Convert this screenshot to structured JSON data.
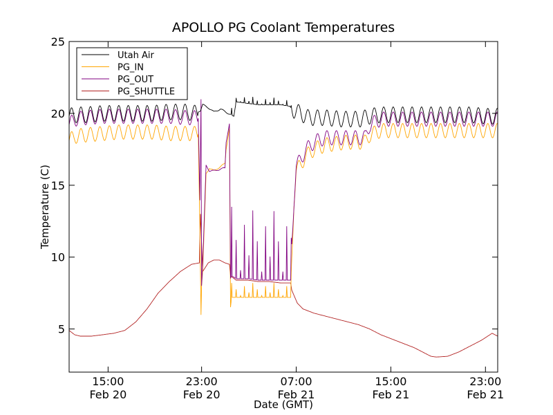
{
  "chart_data": {
    "type": "line",
    "title": "APOLLO PG Coolant Temperatures",
    "xlabel": "Date (GMT)",
    "ylabel": "Temperature (C)",
    "x_unit": "hours since 2020-02-20 10:00 GMT",
    "xlim": [
      0,
      38.5
    ],
    "ylim": [
      2,
      25
    ],
    "y_ticks": [
      5,
      10,
      15,
      20,
      25
    ],
    "x_ticks": [
      {
        "x": 3.5,
        "time": "15:00",
        "date": "Feb 20"
      },
      {
        "x": 11.9,
        "time": "23:00",
        "date": "Feb 20"
      },
      {
        "x": 20.4,
        "time": "07:00",
        "date": "Feb 21"
      },
      {
        "x": 28.9,
        "time": "15:00",
        "date": "Feb 21"
      },
      {
        "x": 37.4,
        "time": "23:00",
        "date": "Feb 21"
      }
    ],
    "grid": false,
    "legend_position": "top-left",
    "series": [
      {
        "name": "Utah Air",
        "color": "#000000",
        "x": [
          0,
          0.5,
          1.5,
          3.0,
          4.5,
          6.0,
          7.5,
          9.0,
          10.5,
          11.2,
          11.8,
          12.0,
          12.5,
          13.0,
          13.6,
          14.3,
          14.8,
          15.0,
          16.0,
          17.0,
          18.0,
          19.0,
          19.8,
          20.2,
          20.8,
          21.5,
          23.0,
          24.5,
          25.5,
          26.2,
          26.6,
          27.0,
          28.0,
          30.0,
          32.0,
          34.0,
          36.0,
          37.5,
          38.5
        ],
        "values": [
          19.8,
          19.9,
          19.9,
          20.0,
          20.0,
          20.0,
          20.0,
          20.1,
          20.1,
          20.0,
          20.2,
          20.6,
          20.4,
          20.1,
          20.3,
          20.0,
          19.8,
          20.8,
          20.7,
          20.6,
          20.6,
          20.6,
          20.5,
          20.2,
          20.0,
          19.7,
          19.7,
          19.6,
          19.6,
          19.6,
          19.7,
          19.8,
          19.9,
          19.9,
          19.9,
          19.9,
          19.9,
          19.8,
          19.8
        ],
        "oscillation": 0.55
      },
      {
        "name": "PG_IN",
        "color": "#ffa500",
        "x": [
          0,
          0.5,
          1.5,
          3.0,
          4.5,
          6.0,
          7.5,
          9.0,
          10.5,
          11.6,
          11.75,
          11.85,
          11.9,
          12.0,
          12.3,
          12.6,
          13.0,
          14.0,
          14.1,
          14.4,
          14.5,
          14.6,
          14.8,
          15.0,
          16.0,
          17.0,
          18.0,
          19.0,
          19.9,
          20.0,
          20.2,
          20.4,
          20.8,
          21.2,
          22.0,
          23.0,
          24.0,
          25.0,
          26.0,
          26.6,
          27.0,
          28.0,
          30.0,
          32.0,
          34.0,
          36.0,
          37.5,
          38.5
        ],
        "values": [
          18.1,
          18.4,
          18.5,
          18.6,
          18.7,
          18.7,
          18.7,
          18.6,
          18.6,
          18.6,
          12.0,
          6.0,
          8.0,
          9.0,
          15.8,
          16.2,
          16.0,
          16.5,
          17.5,
          19.0,
          6.5,
          7.2,
          7.2,
          7.2,
          7.2,
          7.2,
          7.2,
          7.2,
          7.2,
          10.0,
          14.0,
          16.0,
          16.4,
          17.0,
          17.5,
          17.8,
          17.9,
          18.0,
          18.0,
          18.0,
          18.5,
          18.8,
          18.8,
          18.8,
          18.8,
          18.8,
          18.8,
          18.8
        ],
        "oscillation": 0.5
      },
      {
        "name": "PG_OUT",
        "color": "#800080",
        "x": [
          0,
          0.5,
          1.5,
          3.0,
          4.5,
          6.0,
          7.5,
          9.0,
          10.5,
          11.6,
          11.75,
          11.85,
          11.9,
          12.0,
          12.3,
          12.6,
          13.0,
          14.0,
          14.1,
          14.4,
          14.5,
          14.6,
          14.8,
          15.0,
          16.0,
          17.0,
          18.0,
          19.0,
          19.9,
          20.0,
          20.2,
          20.4,
          20.8,
          21.2,
          22.0,
          23.0,
          24.0,
          25.0,
          26.0,
          26.6,
          27.0,
          28.0,
          30.0,
          32.0,
          34.0,
          36.0,
          37.5,
          38.5
        ],
        "values": [
          19.2,
          19.6,
          19.7,
          19.8,
          19.8,
          19.8,
          19.8,
          19.8,
          19.7,
          19.7,
          14.0,
          21.0,
          8.0,
          9.5,
          16.4,
          16.0,
          16.0,
          16.2,
          18.0,
          19.3,
          8.5,
          8.7,
          8.6,
          8.5,
          8.5,
          8.4,
          8.4,
          8.4,
          8.4,
          11.0,
          14.0,
          16.3,
          16.8,
          17.4,
          18.0,
          18.3,
          18.3,
          18.3,
          18.3,
          18.3,
          19.2,
          19.6,
          19.6,
          19.6,
          19.6,
          19.6,
          19.6,
          19.6
        ],
        "oscillation": 0.5
      },
      {
        "name": "PG_SHUTTLE",
        "color": "#b22222",
        "x": [
          0,
          0.5,
          1.0,
          1.5,
          2.0,
          3.0,
          4.0,
          5.0,
          6.0,
          7.0,
          8.0,
          9.0,
          10.0,
          11.0,
          11.7,
          11.8,
          12.0,
          12.5,
          13.0,
          13.5,
          14.0,
          14.4,
          14.5,
          15.0,
          16.0,
          17.0,
          18.0,
          19.0,
          19.9,
          20.0,
          20.5,
          21.0,
          22.0,
          23.0,
          24.0,
          25.0,
          26.0,
          27.0,
          28.0,
          29.0,
          30.0,
          31.0,
          32.0,
          32.5,
          33.0,
          34.0,
          35.0,
          36.0,
          37.0,
          38.0,
          38.5
        ],
        "values": [
          4.9,
          4.6,
          4.5,
          4.5,
          4.5,
          4.6,
          4.7,
          4.9,
          5.5,
          6.4,
          7.5,
          8.3,
          9.0,
          9.5,
          9.6,
          13.0,
          9.0,
          9.6,
          9.8,
          9.8,
          9.6,
          9.5,
          8.7,
          8.4,
          8.4,
          8.3,
          8.3,
          8.2,
          8.2,
          7.7,
          6.8,
          6.4,
          6.1,
          5.9,
          5.7,
          5.5,
          5.3,
          5.0,
          4.6,
          4.3,
          4.0,
          3.7,
          3.3,
          3.1,
          3.05,
          3.1,
          3.4,
          3.8,
          4.2,
          4.7,
          4.5
        ],
        "oscillation": 0
      }
    ]
  }
}
